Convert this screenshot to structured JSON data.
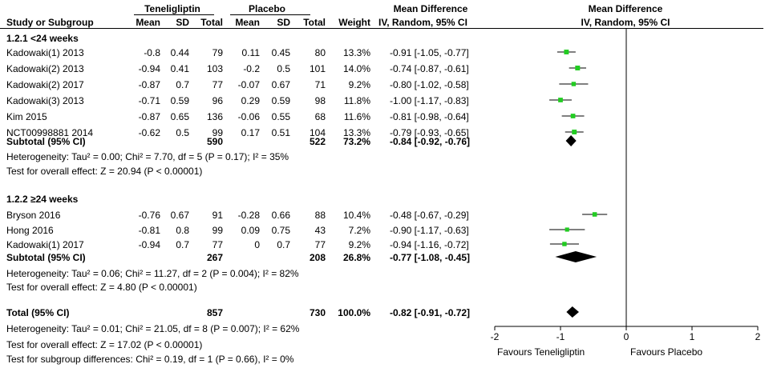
{
  "header": {
    "study_col": "Study or Subgroup",
    "group1": "Teneligliptin",
    "group2": "Placebo",
    "mean": "Mean",
    "sd": "SD",
    "total": "Total",
    "weight": "Weight",
    "md_title": "Mean Difference",
    "md_method": "IV, Random, 95% CI",
    "plot_title": "Mean Difference",
    "plot_method": "IV, Random, 95% CI"
  },
  "subgroups": [
    {
      "title": "1.2.1 <24 weeks",
      "studies": [
        {
          "name": "Kadowaki(1) 2013",
          "m1": "-0.8",
          "sd1": "0.44",
          "n1": "79",
          "m2": "0.11",
          "sd2": "0.45",
          "n2": "80",
          "weight": "13.3%",
          "ci_text": "-0.91 [-1.05, -0.77]"
        },
        {
          "name": "Kadowaki(2) 2013",
          "m1": "-0.94",
          "sd1": "0.41",
          "n1": "103",
          "m2": "-0.2",
          "sd2": "0.5",
          "n2": "101",
          "weight": "14.0%",
          "ci_text": "-0.74 [-0.87, -0.61]"
        },
        {
          "name": "Kadowaki(2) 2017",
          "m1": "-0.87",
          "sd1": "0.7",
          "n1": "77",
          "m2": "-0.07",
          "sd2": "0.67",
          "n2": "71",
          "weight": "9.2%",
          "ci_text": "-0.80 [-1.02, -0.58]"
        },
        {
          "name": "Kadowaki(3) 2013",
          "m1": "-0.71",
          "sd1": "0.59",
          "n1": "96",
          "m2": "0.29",
          "sd2": "0.59",
          "n2": "98",
          "weight": "11.8%",
          "ci_text": "-1.00 [-1.17, -0.83]"
        },
        {
          "name": "Kim 2015",
          "m1": "-0.87",
          "sd1": "0.65",
          "n1": "136",
          "m2": "-0.06",
          "sd2": "0.55",
          "n2": "68",
          "weight": "11.6%",
          "ci_text": "-0.81 [-0.98, -0.64]"
        },
        {
          "name": "NCT00998881 2014",
          "m1": "-0.62",
          "sd1": "0.5",
          "n1": "99",
          "m2": "0.17",
          "sd2": "0.51",
          "n2": "104",
          "weight": "13.3%",
          "ci_text": "-0.79 [-0.93, -0.65]"
        }
      ],
      "subtotal": {
        "label": "Subtotal (95% CI)",
        "n1": "590",
        "n2": "522",
        "weight": "73.2%",
        "ci_text": "-0.84 [-0.92, -0.76]"
      },
      "heterogeneity": "Heterogeneity: Tau² = 0.00; Chi² = 7.70, df = 5 (P = 0.17); I² = 35%",
      "overall": "Test for overall effect: Z = 20.94 (P < 0.00001)"
    },
    {
      "title": "1.2.2 ≥24 weeks",
      "studies": [
        {
          "name": "Bryson 2016",
          "m1": "-0.76",
          "sd1": "0.67",
          "n1": "91",
          "m2": "-0.28",
          "sd2": "0.66",
          "n2": "88",
          "weight": "10.4%",
          "ci_text": "-0.48 [-0.67, -0.29]"
        },
        {
          "name": "Hong 2016",
          "m1": "-0.81",
          "sd1": "0.8",
          "n1": "99",
          "m2": "0.09",
          "sd2": "0.75",
          "n2": "43",
          "weight": "7.2%",
          "ci_text": "-0.90 [-1.17, -0.63]"
        },
        {
          "name": "Kadowaki(1) 2017",
          "m1": "-0.94",
          "sd1": "0.7",
          "n1": "77",
          "m2": "0",
          "sd2": "0.7",
          "n2": "77",
          "weight": "9.2%",
          "ci_text": "-0.94 [-1.16, -0.72]"
        }
      ],
      "subtotal": {
        "label": "Subtotal (95% CI)",
        "n1": "267",
        "n2": "208",
        "weight": "26.8%",
        "ci_text": "-0.77 [-1.08, -0.45]"
      },
      "heterogeneity": "Heterogeneity: Tau² = 0.06; Chi² = 11.27, df = 2 (P = 0.004); I² = 82%",
      "overall": "Test for overall effect: Z = 4.80 (P < 0.00001)"
    }
  ],
  "total": {
    "label": "Total (95% CI)",
    "n1": "857",
    "n2": "730",
    "weight": "100.0%",
    "ci_text": "-0.82 [-0.91, -0.72]"
  },
  "footer": {
    "heterogeneity": "Heterogeneity: Tau² = 0.01; Chi² = 21.05, df = 8 (P = 0.007); I² = 62%",
    "overall": "Test for overall effect: Z = 17.02 (P < 0.00001)",
    "subgroup_diff": "Test for subgroup differences: Chi² = 0.19, df = 1 (P = 0.66), I² = 0%"
  },
  "chart_data": {
    "type": "forest",
    "title": "Mean Difference",
    "subtitle": "IV, Random, 95% CI",
    "xlim": [
      -2,
      2
    ],
    "ticks": [
      -2,
      -1,
      0,
      1,
      2
    ],
    "tick_labels": [
      "-2",
      "-1",
      "0",
      "1",
      "2"
    ],
    "xlabel_left": "Favours Teneligliptin",
    "xlabel_right": "Favours Placebo",
    "marker_color": "#22cc22",
    "studies": [
      {
        "name": "Kadowaki(1) 2013",
        "md": -0.91,
        "lo": -1.05,
        "hi": -0.77,
        "weight": 13.3
      },
      {
        "name": "Kadowaki(2) 2013",
        "md": -0.74,
        "lo": -0.87,
        "hi": -0.61,
        "weight": 14.0
      },
      {
        "name": "Kadowaki(2) 2017",
        "md": -0.8,
        "lo": -1.02,
        "hi": -0.58,
        "weight": 9.2
      },
      {
        "name": "Kadowaki(3) 2013",
        "md": -1.0,
        "lo": -1.17,
        "hi": -0.83,
        "weight": 11.8
      },
      {
        "name": "Kim 2015",
        "md": -0.81,
        "lo": -0.98,
        "hi": -0.64,
        "weight": 11.6
      },
      {
        "name": "NCT00998881 2014",
        "md": -0.79,
        "lo": -0.93,
        "hi": -0.65,
        "weight": 13.3
      },
      {
        "name": "Bryson 2016",
        "md": -0.48,
        "lo": -0.67,
        "hi": -0.29,
        "weight": 10.4
      },
      {
        "name": "Hong 2016",
        "md": -0.9,
        "lo": -1.17,
        "hi": -0.63,
        "weight": 7.2
      },
      {
        "name": "Kadowaki(1) 2017",
        "md": -0.94,
        "lo": -1.16,
        "hi": -0.72,
        "weight": 9.2
      }
    ],
    "summaries": [
      {
        "name": "Subtotal 1.2.1",
        "md": -0.84,
        "lo": -0.92,
        "hi": -0.76
      },
      {
        "name": "Subtotal 1.2.2",
        "md": -0.77,
        "lo": -1.08,
        "hi": -0.45
      },
      {
        "name": "Total",
        "md": -0.82,
        "lo": -0.91,
        "hi": -0.72
      }
    ]
  }
}
